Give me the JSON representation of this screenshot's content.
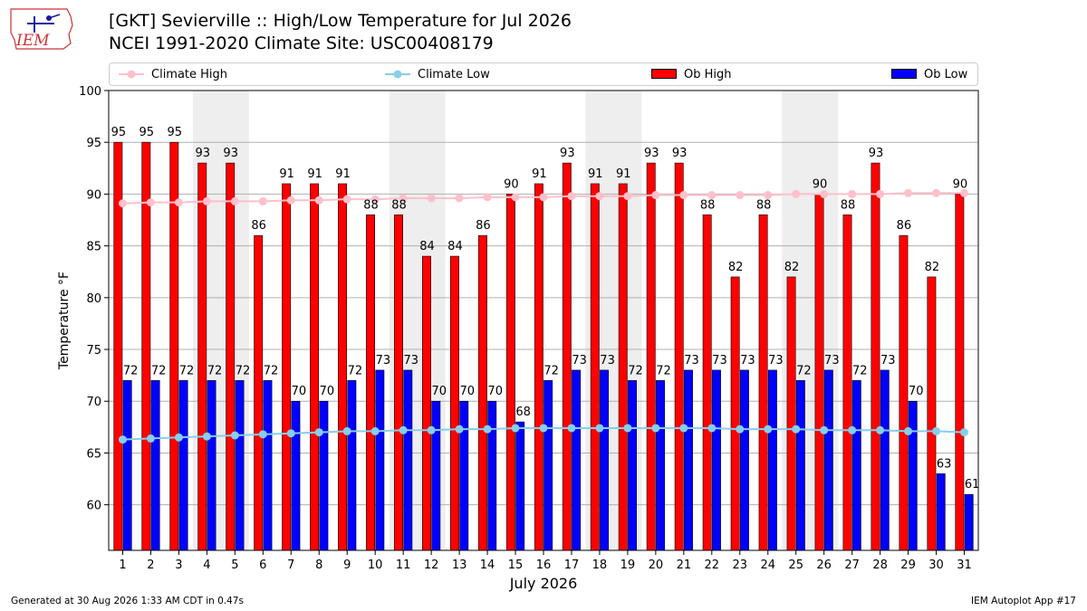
{
  "header": {
    "logo_text": "IEM",
    "title_line1": "[GKT] Sevierville :: High/Low Temperature for Jul 2026",
    "title_line2": "NCEI 1991-2020 Climate Site: USC00408179"
  },
  "legend": {
    "climate_high": "Climate High",
    "climate_low": "Climate Low",
    "ob_high": "Ob High",
    "ob_low": "Ob Low"
  },
  "footer": {
    "generated": "Generated at 30 Aug 2026 1:33 AM CDT in 0.47s",
    "app": "IEM Autoplot App #17"
  },
  "colors": {
    "ob_high": "#ff0000",
    "ob_low": "#0000ff",
    "climate_high": "#ffc0cb",
    "climate_low": "#87ceeb",
    "weekend_shade": "#eeeeee"
  },
  "chart_data": {
    "type": "bar",
    "xlabel": "July 2026",
    "ylabel": "Temperature °F",
    "ylim": [
      55.6,
      100
    ],
    "yticks": [
      60,
      65,
      70,
      75,
      80,
      85,
      90,
      95,
      100
    ],
    "grid": true,
    "legend_position": "top",
    "categories": [
      "1",
      "2",
      "3",
      "4",
      "5",
      "6",
      "7",
      "8",
      "9",
      "10",
      "11",
      "12",
      "13",
      "14",
      "15",
      "16",
      "17",
      "18",
      "19",
      "20",
      "21",
      "22",
      "23",
      "24",
      "25",
      "26",
      "27",
      "28",
      "29",
      "30",
      "31"
    ],
    "shaded_days": [
      [
        4,
        5
      ],
      [
        11,
        12
      ],
      [
        18,
        19
      ],
      [
        25,
        26
      ]
    ],
    "series": [
      {
        "name": "Ob High",
        "kind": "bar",
        "values": [
          95,
          95,
          95,
          93,
          93,
          86,
          91,
          91,
          91,
          88,
          88,
          84,
          84,
          86,
          90,
          91,
          93,
          91,
          91,
          93,
          93,
          88,
          82,
          88,
          82,
          90,
          88,
          93,
          86,
          82,
          90
        ]
      },
      {
        "name": "Ob Low",
        "kind": "bar",
        "values": [
          72,
          72,
          72,
          72,
          72,
          72,
          70,
          70,
          72,
          73,
          73,
          70,
          70,
          70,
          68,
          72,
          73,
          73,
          72,
          72,
          73,
          73,
          73,
          73,
          72,
          73,
          72,
          73,
          70,
          63,
          61
        ]
      },
      {
        "name": "Climate High",
        "kind": "line",
        "values": [
          89.1,
          89.2,
          89.2,
          89.3,
          89.3,
          89.3,
          89.4,
          89.4,
          89.5,
          89.5,
          89.6,
          89.6,
          89.6,
          89.7,
          89.7,
          89.7,
          89.8,
          89.8,
          89.8,
          89.9,
          89.9,
          89.9,
          89.9,
          89.9,
          90.0,
          90.0,
          90.0,
          90.0,
          90.1,
          90.1,
          90.1
        ]
      },
      {
        "name": "Climate Low",
        "kind": "line",
        "values": [
          66.3,
          66.4,
          66.5,
          66.6,
          66.7,
          66.8,
          66.9,
          67.0,
          67.1,
          67.1,
          67.2,
          67.2,
          67.3,
          67.3,
          67.4,
          67.4,
          67.4,
          67.4,
          67.4,
          67.4,
          67.4,
          67.4,
          67.3,
          67.3,
          67.3,
          67.2,
          67.2,
          67.2,
          67.1,
          67.1,
          67.0
        ]
      }
    ]
  }
}
